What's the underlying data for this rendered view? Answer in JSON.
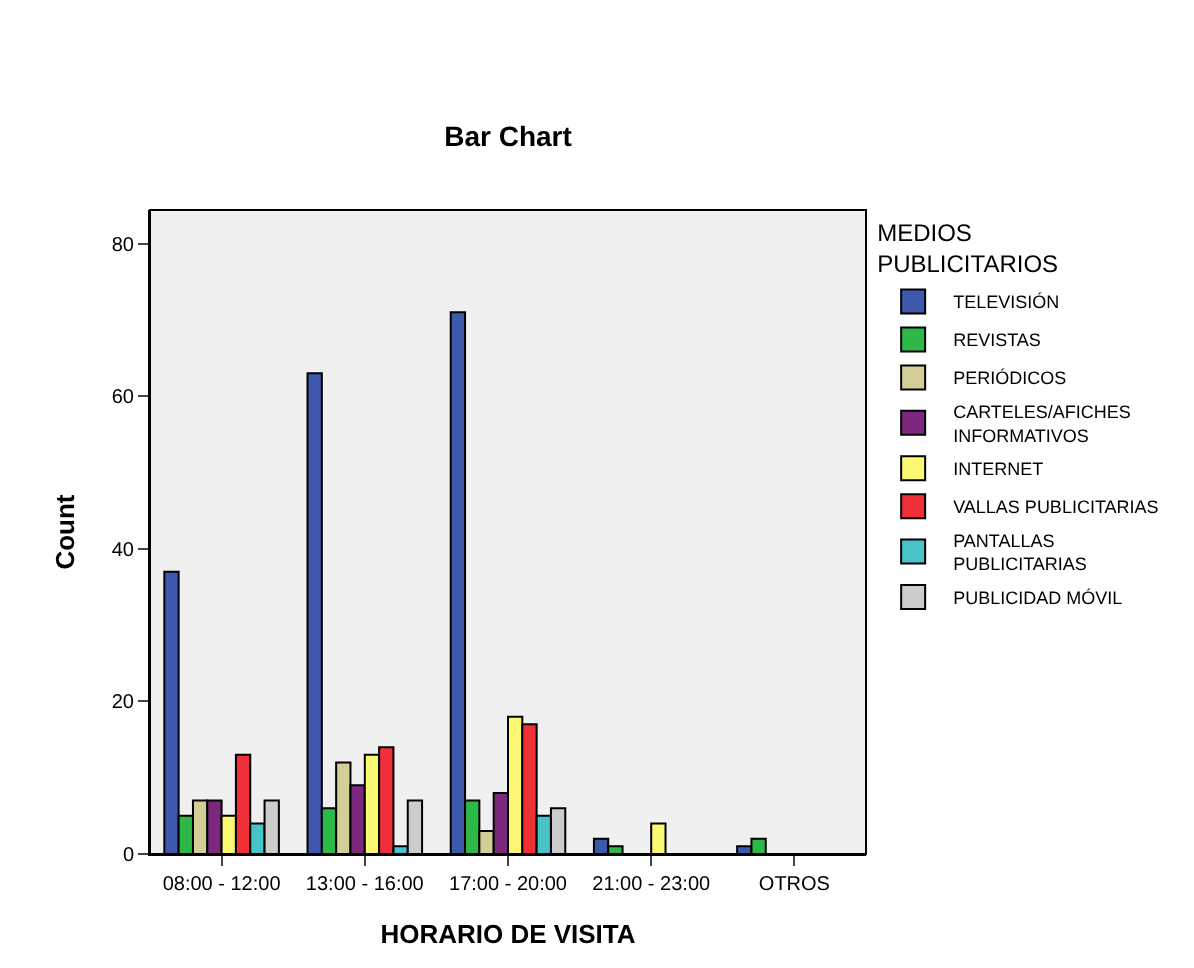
{
  "chart_data": {
    "type": "bar",
    "title": "Bar Chart",
    "xlabel": "HORARIO DE VISITA",
    "ylabel": "Count",
    "legend_title": "MEDIOS PUBLICITARIOS",
    "legend": "right",
    "categories": [
      "08:00 - 12:00",
      "13:00 - 16:00",
      "17:00 - 20:00",
      "21:00 - 23:00",
      "OTROS"
    ],
    "ylim": [
      0,
      84.4
    ],
    "yticks": [
      0,
      20,
      40,
      60,
      80
    ],
    "grid": false,
    "series": [
      {
        "name": "TELEVISIÓN",
        "color": "#3e58ac",
        "values": [
          37,
          63,
          71,
          2,
          1
        ]
      },
      {
        "name": "REVISTAS",
        "color": "#2eb848",
        "values": [
          5,
          6,
          7,
          1,
          2
        ]
      },
      {
        "name": "PERIÓDICOS",
        "color": "#d3ce97",
        "values": [
          7,
          12,
          3,
          null,
          null
        ]
      },
      {
        "name": "CARTELES/AFICHES INFORMATIVOS",
        "color": "#7b287e",
        "values": [
          7,
          9,
          8,
          null,
          null
        ]
      },
      {
        "name": "INTERNET",
        "color": "#fbf873",
        "values": [
          5,
          13,
          18,
          4,
          null
        ]
      },
      {
        "name": "VALLAS PUBLICITARIAS",
        "color": "#ef3038",
        "values": [
          13,
          14,
          17,
          null,
          null
        ]
      },
      {
        "name": "PANTALLAS PUBLICITARIAS",
        "color": "#48c4c8",
        "values": [
          4,
          1,
          5,
          null,
          null
        ]
      },
      {
        "name": "PUBLICIDAD MÓVIL",
        "color": "#cccccc",
        "values": [
          7,
          7,
          6,
          null,
          null
        ]
      }
    ]
  }
}
